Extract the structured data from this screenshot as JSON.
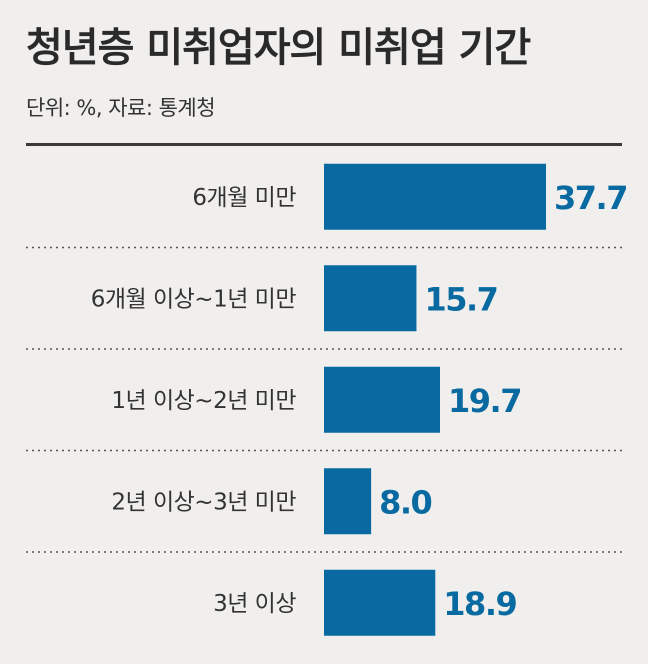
{
  "chart_data": {
    "type": "bar",
    "orientation": "horizontal",
    "title": "청년층 미취업자의 미취업 기간",
    "subtitle": "단위: %, 자료: 통계청",
    "categories": [
      "6개월 미만",
      "6개월 이상~1년 미만",
      "1년 이상~2년 미만",
      "2년 이상~3년 미만",
      "3년 이상"
    ],
    "values": [
      37.7,
      15.7,
      19.7,
      8.0,
      18.9
    ],
    "value_labels": [
      "37.7",
      "15.7",
      "19.7",
      "8.0",
      "18.9"
    ],
    "bar_color": "#086aa0",
    "value_label_color": "#086aa0",
    "xlim": [
      0,
      37.7
    ],
    "grid": false
  }
}
